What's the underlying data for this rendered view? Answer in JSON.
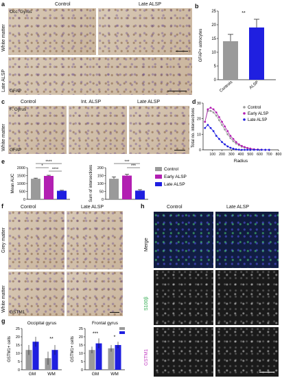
{
  "panels": {
    "a": {
      "letter": "a",
      "region": "Occ. Gyrus",
      "col1": "Control",
      "col2": "Late ALSP",
      "row1": "White matter",
      "row2": "Late ALSP",
      "stain": "GFAP"
    },
    "b": {
      "letter": "b",
      "significance": "**"
    },
    "c": {
      "letter": "c",
      "region": "F. Gyrus",
      "col1": "Control",
      "col2": "Int. ALSP",
      "col3": "Late ALSP",
      "row1": "White matter",
      "stain": "GFAP"
    },
    "d": {
      "letter": "d"
    },
    "e": {
      "letter": "e",
      "sig_left_top": "****",
      "sig_left_a": "*",
      "sig_left_b": "****",
      "sig_right_top": "***",
      "sig_right_b": "***"
    },
    "f": {
      "letter": "f",
      "col1": "Control",
      "col2": "Late ALSP",
      "row1": "Grey matter",
      "row2": "White matter",
      "stain": "GSTM1"
    },
    "g": {
      "letter": "g",
      "title_left": "Occipital gyrus",
      "title_right": "Frontal gyrus",
      "sig_left_wm": "**",
      "sig_right_gm": "***",
      "sig_right_wm": "*"
    },
    "h": {
      "letter": "h",
      "col1": "Control",
      "col2": "Late ALSP",
      "row1": "Merge",
      "row2": "S100β",
      "row3": "GSTM1"
    }
  },
  "colors": {
    "control": "#9a9a9a",
    "early": "#b21fb2",
    "late": "#1f1fe0",
    "alsp": "#1f1fe0"
  },
  "chart_data": [
    {
      "id": "b",
      "type": "bar",
      "categories": [
        "Controls",
        "ALSP"
      ],
      "values": [
        14,
        19
      ],
      "errors": [
        2.5,
        3
      ],
      "ylabel": "GFAP+ astrocytes",
      "ylim": [
        0,
        25
      ],
      "yticks": [
        0,
        5,
        10,
        15,
        20,
        25
      ]
    },
    {
      "id": "d",
      "type": "line",
      "xlabel": "Radius",
      "ylabel": "Total no. intersections",
      "xlim": [
        0,
        800
      ],
      "ylim": [
        0,
        30
      ],
      "xticks": [
        100,
        200,
        300,
        400,
        500,
        600,
        700,
        800
      ],
      "yticks": [
        0,
        10,
        20,
        30
      ],
      "legend_position": "top-right",
      "x": [
        20,
        50,
        80,
        110,
        140,
        170,
        200,
        230,
        260,
        290,
        320,
        350,
        380,
        410,
        440,
        470,
        500,
        540,
        580,
        620,
        660,
        700
      ],
      "series": [
        {
          "name": "Control",
          "values": [
            18,
            25,
            25,
            24,
            22,
            19,
            16,
            13,
            10,
            7.5,
            5.5,
            4,
            3,
            2,
            1.5,
            1,
            0.6,
            0.3,
            0.2,
            0.1,
            0,
            0
          ]
        },
        {
          "name": "Early ALSP",
          "values": [
            18,
            26,
            27,
            26,
            24,
            21,
            18,
            15,
            12,
            9,
            7,
            5,
            3.5,
            2.5,
            1.8,
            1.2,
            0.8,
            0.4,
            0.2,
            0.1,
            0,
            0
          ]
        },
        {
          "name": "Late ALSP",
          "values": [
            14,
            16,
            14,
            12,
            9,
            7,
            5,
            3.5,
            2.2,
            1.3,
            0.7,
            0.3,
            0.1,
            0,
            0,
            0,
            0,
            0,
            0,
            0,
            0,
            0
          ]
        }
      ]
    },
    {
      "id": "e1",
      "type": "bar",
      "categories": [
        "Control",
        "Early ALSP",
        "Late ALSP"
      ],
      "values": [
        1300,
        1480,
        540
      ],
      "errors": [
        40,
        40,
        30
      ],
      "ylabel": "Mean AUC",
      "ylim": [
        0,
        2000
      ],
      "yticks": [
        0,
        500,
        1000,
        1500,
        2000
      ]
    },
    {
      "id": "e2",
      "type": "bar",
      "categories": [
        "Control",
        "Early ALSP",
        "Late ALSP"
      ],
      "values": [
        130,
        150,
        55
      ],
      "errors": [
        12,
        8,
        6
      ],
      "ylabel": "Sum of intersections",
      "ylim": [
        0,
        200
      ],
      "yticks": [
        0,
        50,
        100,
        150,
        200
      ],
      "legend_position": "right",
      "legend": [
        "Control",
        "Early ALSP",
        "Late ALSP"
      ]
    },
    {
      "id": "g1",
      "type": "bar",
      "title": "Occipital gyrus",
      "categories": [
        "GM",
        "WM"
      ],
      "series": [
        {
          "name": "Control",
          "values": [
            12,
            7
          ],
          "errors": [
            3,
            4
          ]
        },
        {
          "name": "ALSP",
          "values": [
            17,
            12
          ],
          "errors": [
            3,
            3
          ]
        }
      ],
      "ylabel": "GSTM1+ cells",
      "ylim": [
        0,
        25
      ],
      "yticks": [
        0,
        5,
        10,
        15,
        20,
        25
      ]
    },
    {
      "id": "g2",
      "type": "bar",
      "title": "Frontal gyrus",
      "categories": [
        "GM",
        "WM"
      ],
      "series": [
        {
          "name": "Control",
          "values": [
            12,
            13
          ],
          "errors": [
            2,
            2
          ]
        },
        {
          "name": "ALSP",
          "values": [
            16,
            15
          ],
          "errors": [
            3,
            2
          ]
        }
      ],
      "ylabel": "GSTM1+ cells",
      "ylim": [
        0,
        25
      ],
      "yticks": [
        0,
        5,
        10,
        15,
        20,
        25
      ]
    }
  ]
}
